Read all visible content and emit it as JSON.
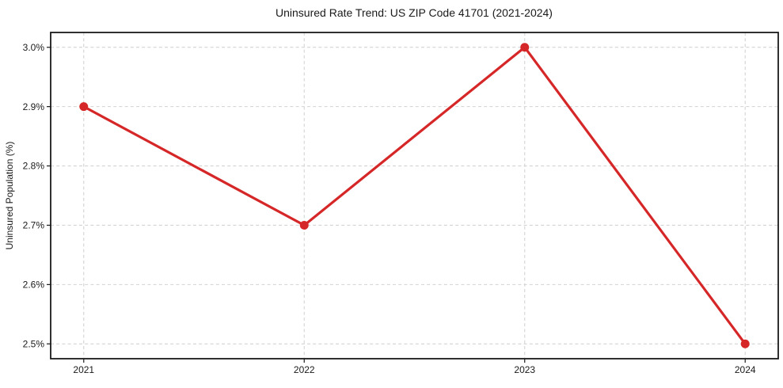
{
  "chart_data": {
    "type": "line",
    "title": "Uninsured Rate Trend: US ZIP Code 41701 (2021-2024)",
    "xlabel": "",
    "ylabel": "Uninsured Population (%)",
    "x": [
      2021,
      2022,
      2023,
      2024
    ],
    "categories": [
      "2021",
      "2022",
      "2023",
      "2024"
    ],
    "series": [
      {
        "name": "Uninsured Population (%)",
        "values": [
          2.9,
          2.7,
          3.0,
          2.5
        ]
      }
    ],
    "xlim": [
      2020.85,
      2024.15
    ],
    "ylim": [
      2.475,
      3.025
    ],
    "xticks": [
      2021,
      2022,
      2023,
      2024
    ],
    "xtick_labels": [
      "2021",
      "2022",
      "2023",
      "2024"
    ],
    "yticks": [
      2.5,
      2.6,
      2.7,
      2.8,
      2.9,
      3.0
    ],
    "ytick_labels": [
      "2.5%",
      "2.6%",
      "2.7%",
      "2.8%",
      "2.9%",
      "3.0%"
    ],
    "grid": true,
    "grid_style": "dashed",
    "legend": false,
    "line_color": "#d62728",
    "marker": "circle",
    "marker_color": "#d62728",
    "grid_color": "#d3d3d3",
    "spine_color": "#1a1a1a",
    "text_color": "#1a1a1a",
    "background": "#ffffff"
  }
}
